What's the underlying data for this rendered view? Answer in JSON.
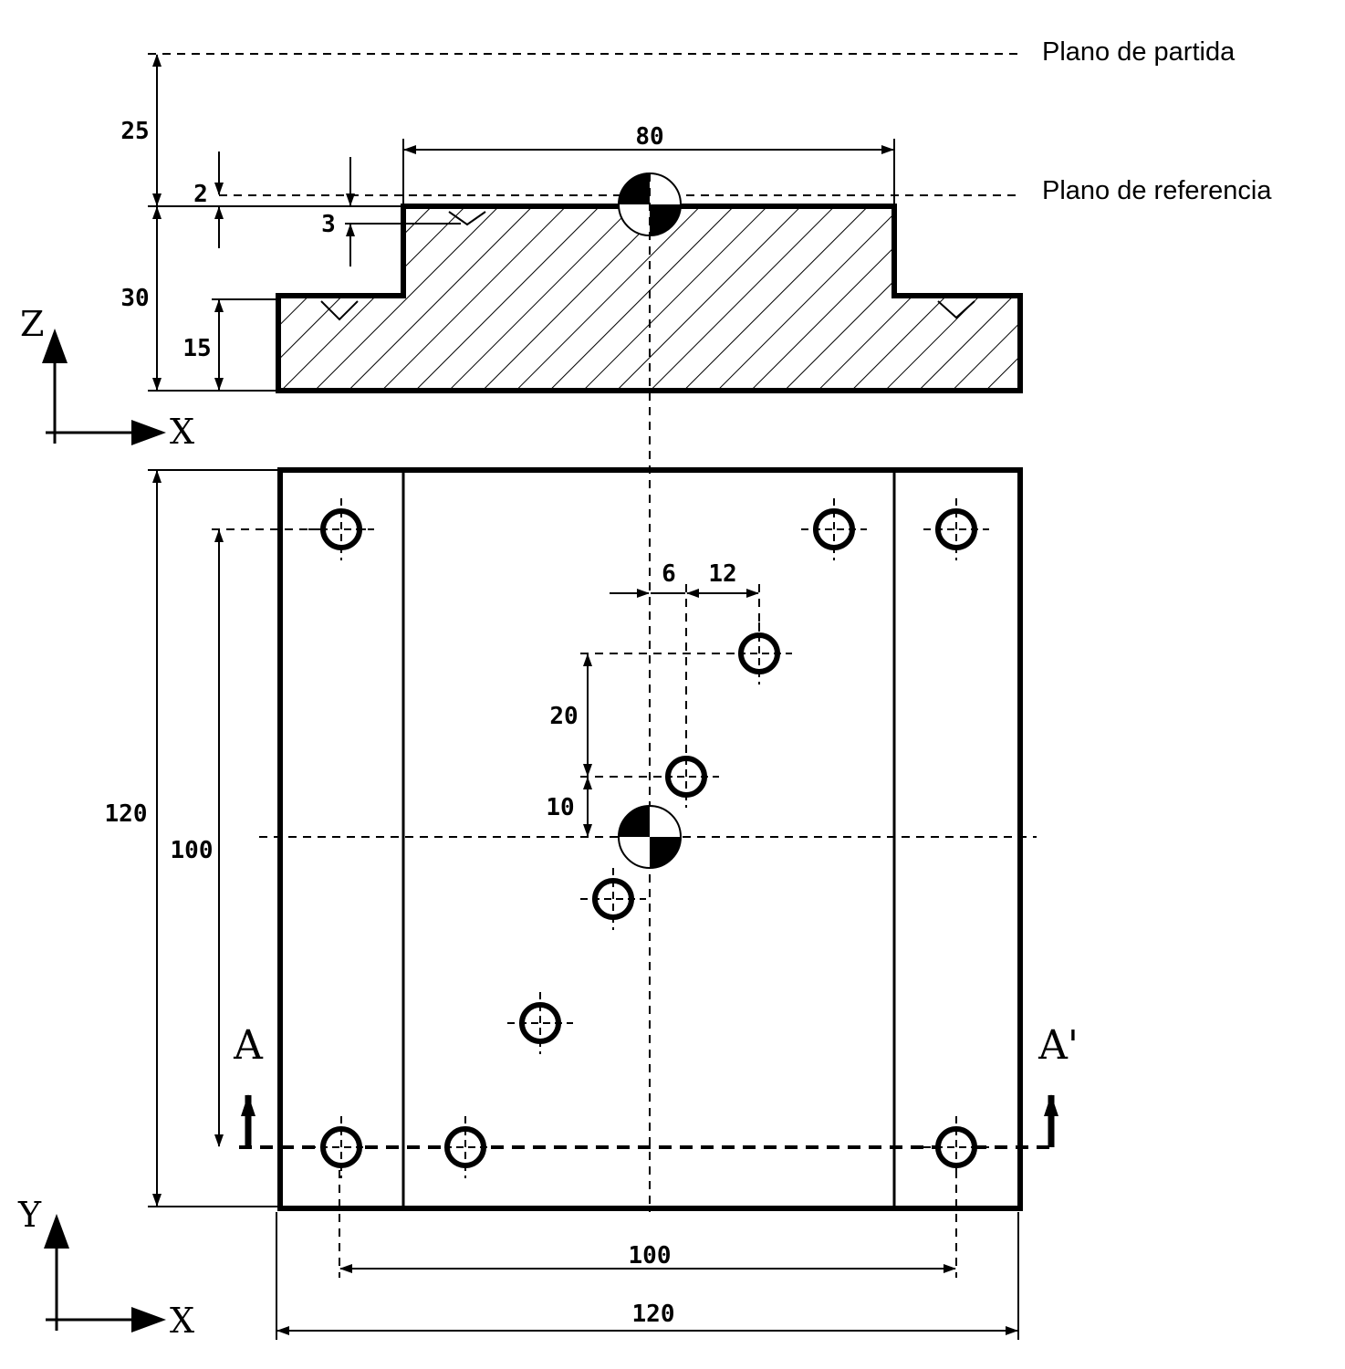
{
  "planes": {
    "start": "Plano de partida",
    "reference": "Plano de referencia"
  },
  "axes": {
    "elevation_vertical": "Z",
    "elevation_horizontal": "X",
    "plan_vertical": "Y",
    "plan_horizontal": "X"
  },
  "section": {
    "left": "A",
    "right": "A'"
  },
  "dimensions": {
    "clearance": "25",
    "boss_width": "80",
    "ref_offset": "2",
    "depth_offset": "3",
    "total_height": "30",
    "step_height": "15",
    "dx_6": "6",
    "dx_12": "12",
    "dy_20": "20",
    "dy_10": "10",
    "plate_height": "120",
    "hole_span_y": "100",
    "hole_span_x": "100",
    "plate_width": "120"
  },
  "colors": {
    "line": "#000000",
    "background": "#ffffff"
  }
}
